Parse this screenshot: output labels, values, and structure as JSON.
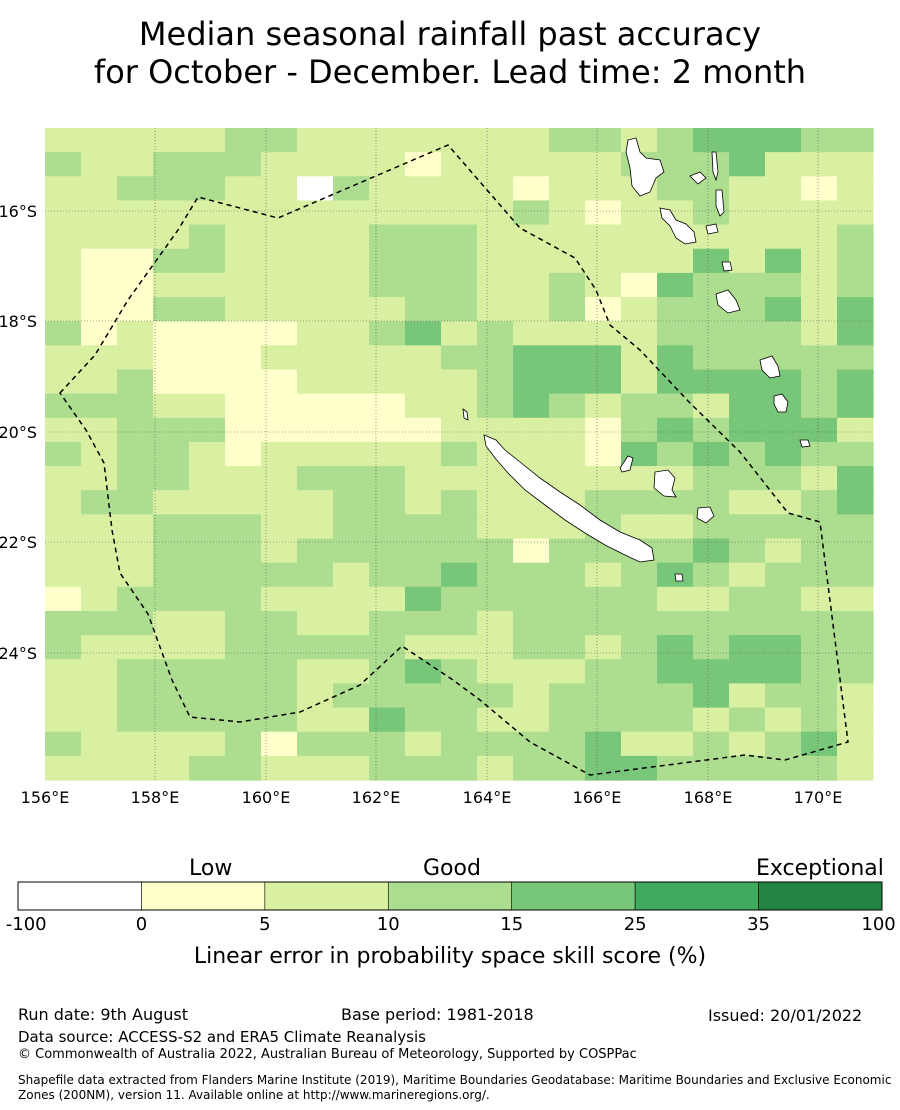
{
  "title_line1": "Median seasonal rainfall past accuracy",
  "title_line2": "for October - December. Lead time: 2 month",
  "map": {
    "x_ticks": [
      "156°E",
      "158°E",
      "160°E",
      "162°E",
      "164°E",
      "166°E",
      "168°E",
      "170°E"
    ],
    "y_ticks": [
      "16°S",
      "18°S",
      "20°S",
      "22°S",
      "24°S"
    ],
    "colors": [
      "#ffffff",
      "#ffffcc",
      "#d9f0a3",
      "#addd8e",
      "#78c679",
      "#41ab5d",
      "#238443"
    ],
    "grid": [
      "22222332222222332344433",
      "32233322221222223334222",
      "22333220322221222332212",
      "22222222222223212232222",
      "22223222233322222222223",
      "21133222233322222242423",
      "21122222233322321433323",
      "21133222223322312333424",
      "31211112234232222333324",
      "22211122222334442433333",
      "22311112222234442444434",
      "33322111112234323324434",
      "22333111111222213434442",
      "32332122222322214343433",
      "22332223332222222233324",
      "23322222332322233332234",
      "22233322333322232233333",
      "22233323333331333343233",
      "22233333233433323432333",
      "12333322224333333223322",
      "33322332233323333333333",
      "32222333332223323434433",
      "22333332234322233444433",
      "22333332333332333342332",
      "22333332243322333323232",
      "32222313332333342232342",
      "22223322233323344333332"
    ]
  },
  "colorbar": {
    "categories": [
      "Low",
      "Good",
      "Exceptional"
    ],
    "ticks": [
      "-100",
      "0",
      "5",
      "10",
      "15",
      "25",
      "35",
      "100"
    ],
    "colors": [
      "#ffffff",
      "#ffffcc",
      "#d9f0a3",
      "#addd8e",
      "#78c679",
      "#41ab5d",
      "#238443"
    ],
    "title": "Linear error in probability space skill score (%)"
  },
  "footer": {
    "run_date": "Run date: 9th August",
    "base_period": "Base period: 1981-2018",
    "issued": "Issued: 20/01/2022",
    "data_source": "Data source: ACCESS-S2 and ERA5 Climate Reanalysis",
    "copyright": "© Commonwealth of Australia 2022, Australian Bureau of Meteorology, Supported by COSPPac",
    "shapefile_line1": "Shapefile data extracted from Flanders Marine Institute (2019), Maritime Boundaries Geodatabase: Maritime Boundaries and Exclusive Economic",
    "shapefile_line2": "Zones (200NM), version 11. Available online at http://www.marineregions.org/."
  }
}
